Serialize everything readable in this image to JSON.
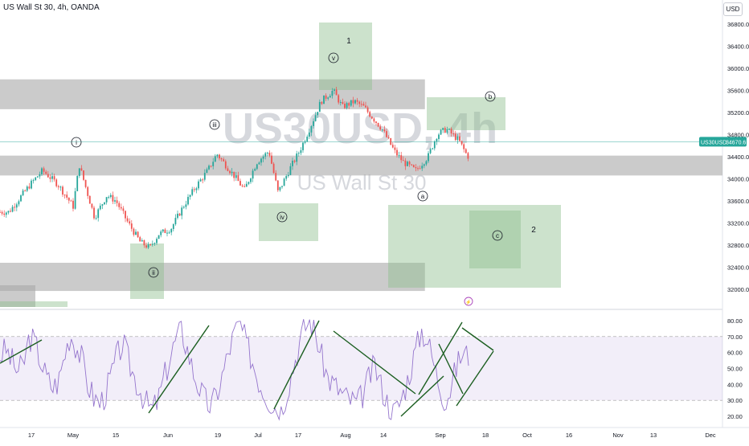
{
  "header": {
    "title": "US Wall St 30, 4h, OANDA",
    "currency_button": "USD"
  },
  "watermark": {
    "line1": "US30USD, 4h",
    "line2": "US Wall St 30"
  },
  "price_badge": {
    "label": "US30USD",
    "value": "34670.6",
    "color": "#26a69a"
  },
  "colors": {
    "zone_gray": "#a8a8a8",
    "zone_green": "#8fbf8f",
    "candle_up": "#26a69a",
    "candle_down": "#ef5350",
    "rsi_line": "#9575cd",
    "trend_line": "#1b5e20",
    "rsi_band": "#7e57c2"
  },
  "wave_labels": [
    "i",
    "ii",
    "iii",
    "iv",
    "v",
    "1",
    "a",
    "b",
    "c",
    "2"
  ],
  "chart_data": [
    {
      "type": "candlestick",
      "series": "US30USD",
      "y_ticks": [
        "36800.0",
        "36400.0",
        "36000.0",
        "35600.0",
        "35200.0",
        "34800.0",
        "34400.0",
        "34000.0",
        "33600.0",
        "33200.0",
        "32800.0",
        "32400.0",
        "32000.0"
      ],
      "ylim": [
        31700,
        37000
      ],
      "x_ticks": [
        "17",
        "May",
        "15",
        "Jun",
        "19",
        "Jul",
        "17",
        "Aug",
        "14",
        "Sep",
        "18",
        "Oct",
        "16",
        "Nov",
        "13",
        "Dec"
      ],
      "last_price": 34670.6,
      "price_path": [
        [
          "Apr 10",
          33400
        ],
        [
          "Apr 17",
          33900
        ],
        [
          "Apr 21",
          34150
        ],
        [
          "Apr 26",
          33900
        ],
        [
          "May 1",
          33500
        ],
        [
          "May 3",
          34250
        ],
        [
          "May 8",
          33300
        ],
        [
          "May 12",
          33700
        ],
        [
          "May 15",
          33600
        ],
        [
          "May 19",
          33200
        ],
        [
          "May 23",
          32850
        ],
        [
          "May 26",
          32750
        ],
        [
          "May 29",
          33000
        ],
        [
          "Jun 2",
          33100
        ],
        [
          "Jun 6",
          33500
        ],
        [
          "Jun 10",
          33850
        ],
        [
          "Jun 14",
          34150
        ],
        [
          "Jun 17",
          34450
        ],
        [
          "Jun 22",
          34100
        ],
        [
          "Jun 26",
          33800
        ],
        [
          "Jun 30",
          34300
        ],
        [
          "Jul 4",
          34500
        ],
        [
          "Jul 7",
          33750
        ],
        [
          "Jul 11",
          34200
        ],
        [
          "Jul 14",
          34500
        ],
        [
          "Jul 18",
          35000
        ],
        [
          "Jul 21",
          35400
        ],
        [
          "Jul 25",
          35600
        ],
        [
          "Jul 28",
          35300
        ],
        [
          "Aug 1",
          35400
        ],
        [
          "Aug 4",
          35300
        ],
        [
          "Aug 7",
          35100
        ],
        [
          "Aug 10",
          34900
        ],
        [
          "Aug 14",
          34500
        ],
        [
          "Aug 17",
          34300
        ],
        [
          "Aug 21",
          34150
        ],
        [
          "Aug 25",
          34400
        ],
        [
          "Aug 28",
          34800
        ],
        [
          "Aug 31",
          34900
        ],
        [
          "Sep 4",
          34700
        ],
        [
          "Sep 7",
          34400
        ],
        [
          "Sep 10",
          34600
        ]
      ],
      "zones": [
        {
          "kind": "resistance",
          "from": "Apr 10",
          "to": "Aug 24",
          "price_low": 35260,
          "price_high": 35800
        },
        {
          "kind": "support",
          "from": "Apr 10",
          "to": "Dec 18",
          "price_low": 34060,
          "price_high": 34420
        },
        {
          "kind": "support",
          "from": "Apr 10",
          "to": "Aug 24",
          "price_low": 31970,
          "price_high": 32480
        }
      ]
    },
    {
      "type": "line",
      "series": "RSI",
      "y_ticks": [
        "80.00",
        "70.00",
        "60.00",
        "50.00",
        "40.00",
        "30.00",
        "20.00"
      ],
      "ylim": [
        15,
        85
      ],
      "bands": [
        70,
        30
      ],
      "values": [
        58,
        62,
        55,
        48,
        52,
        70,
        66,
        54,
        44,
        38,
        42,
        58,
        72,
        64,
        56,
        40,
        32,
        28,
        34,
        46,
        58,
        66,
        54,
        44,
        36,
        28,
        24,
        30,
        44,
        56,
        68,
        74,
        62,
        48,
        38,
        30,
        26,
        34,
        46,
        60,
        72,
        78,
        66,
        56,
        44,
        36,
        30,
        26,
        24,
        36,
        50,
        64,
        76,
        80,
        70,
        56,
        44,
        40,
        36,
        32,
        30,
        28,
        34,
        44,
        52,
        40,
        30,
        22,
        26,
        36,
        48,
        62,
        74,
        68,
        54,
        40,
        30,
        38,
        52,
        60,
        58
      ]
    }
  ]
}
